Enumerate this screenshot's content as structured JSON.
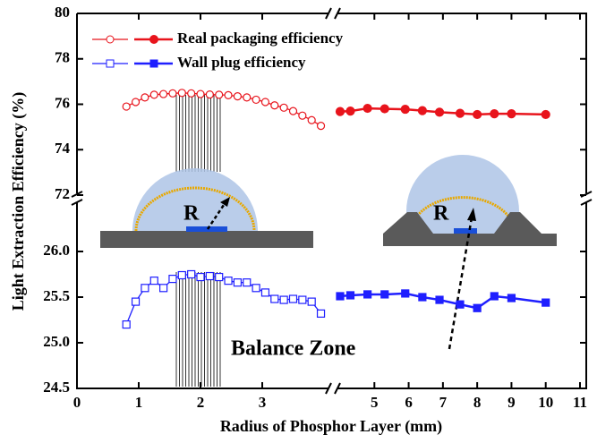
{
  "chart_data": {
    "type": "line",
    "x_label": "Radius of Phosphor Layer (mm)",
    "y_label": "Light Extraction Efficiency (%)",
    "xlim": [
      [
        0,
        4
      ],
      [
        4,
        11
      ]
    ],
    "xticks": [
      [
        0,
        1,
        2,
        3
      ],
      [
        5,
        6,
        7,
        8,
        9,
        10,
        11
      ]
    ],
    "ylim": [
      [
        24.5,
        26.5
      ],
      [
        72,
        80
      ]
    ],
    "yticks": [
      [
        24.5,
        {
          "value": 25,
          "label": "25.0"
        },
        25.5,
        {
          "value": 26,
          "label": "26.0"
        }
      ],
      [
        72,
        74,
        76,
        78,
        80
      ]
    ],
    "series": [
      {
        "name": "Wall plug efficiency",
        "color": "#1f1fff",
        "panel": 0,
        "x": [
          0.8,
          0.95,
          1.1,
          1.25,
          1.4,
          1.55,
          1.7,
          1.85,
          2.0,
          2.15,
          2.3,
          2.45,
          2.6,
          2.75,
          2.9,
          3.05,
          3.2,
          3.35,
          3.5,
          3.65,
          3.8,
          3.95,
          4.0,
          4.3,
          4.8,
          5.3,
          5.9,
          6.4,
          6.9,
          7.5,
          8.0,
          8.5,
          9.0,
          10.0
        ],
        "values": [
          25.2,
          25.45,
          25.6,
          25.68,
          25.6,
          25.7,
          25.74,
          25.75,
          25.72,
          25.73,
          25.72,
          25.68,
          25.66,
          25.66,
          25.6,
          25.55,
          25.48,
          25.47,
          25.48,
          25.47,
          25.45,
          25.32,
          25.51,
          25.52,
          25.53,
          25.53,
          25.54,
          25.5,
          25.47,
          25.42,
          25.38,
          25.51,
          25.49,
          25.44
        ]
      },
      {
        "name": "Real packaging efficiency",
        "color": "#e8141c",
        "panel": 1,
        "x": [
          0.8,
          0.95,
          1.1,
          1.25,
          1.4,
          1.55,
          1.7,
          1.85,
          2.0,
          2.15,
          2.3,
          2.45,
          2.6,
          2.75,
          2.9,
          3.05,
          3.2,
          3.35,
          3.5,
          3.65,
          3.8,
          3.95,
          4.0,
          4.3,
          4.8,
          5.3,
          5.9,
          6.4,
          6.9,
          7.5,
          8.0,
          8.5,
          9.0,
          10.0
        ],
        "values": [
          75.9,
          76.1,
          76.3,
          76.42,
          76.45,
          76.48,
          76.5,
          76.48,
          76.45,
          76.43,
          76.42,
          76.4,
          76.35,
          76.3,
          76.2,
          76.1,
          75.95,
          75.85,
          75.7,
          75.5,
          75.3,
          75.05,
          75.68,
          75.7,
          75.82,
          75.8,
          75.78,
          75.72,
          75.65,
          75.6,
          75.55,
          75.58,
          75.58,
          75.55
        ]
      }
    ],
    "annotations": [
      "Balance Zone",
      "R",
      "R"
    ]
  }
}
